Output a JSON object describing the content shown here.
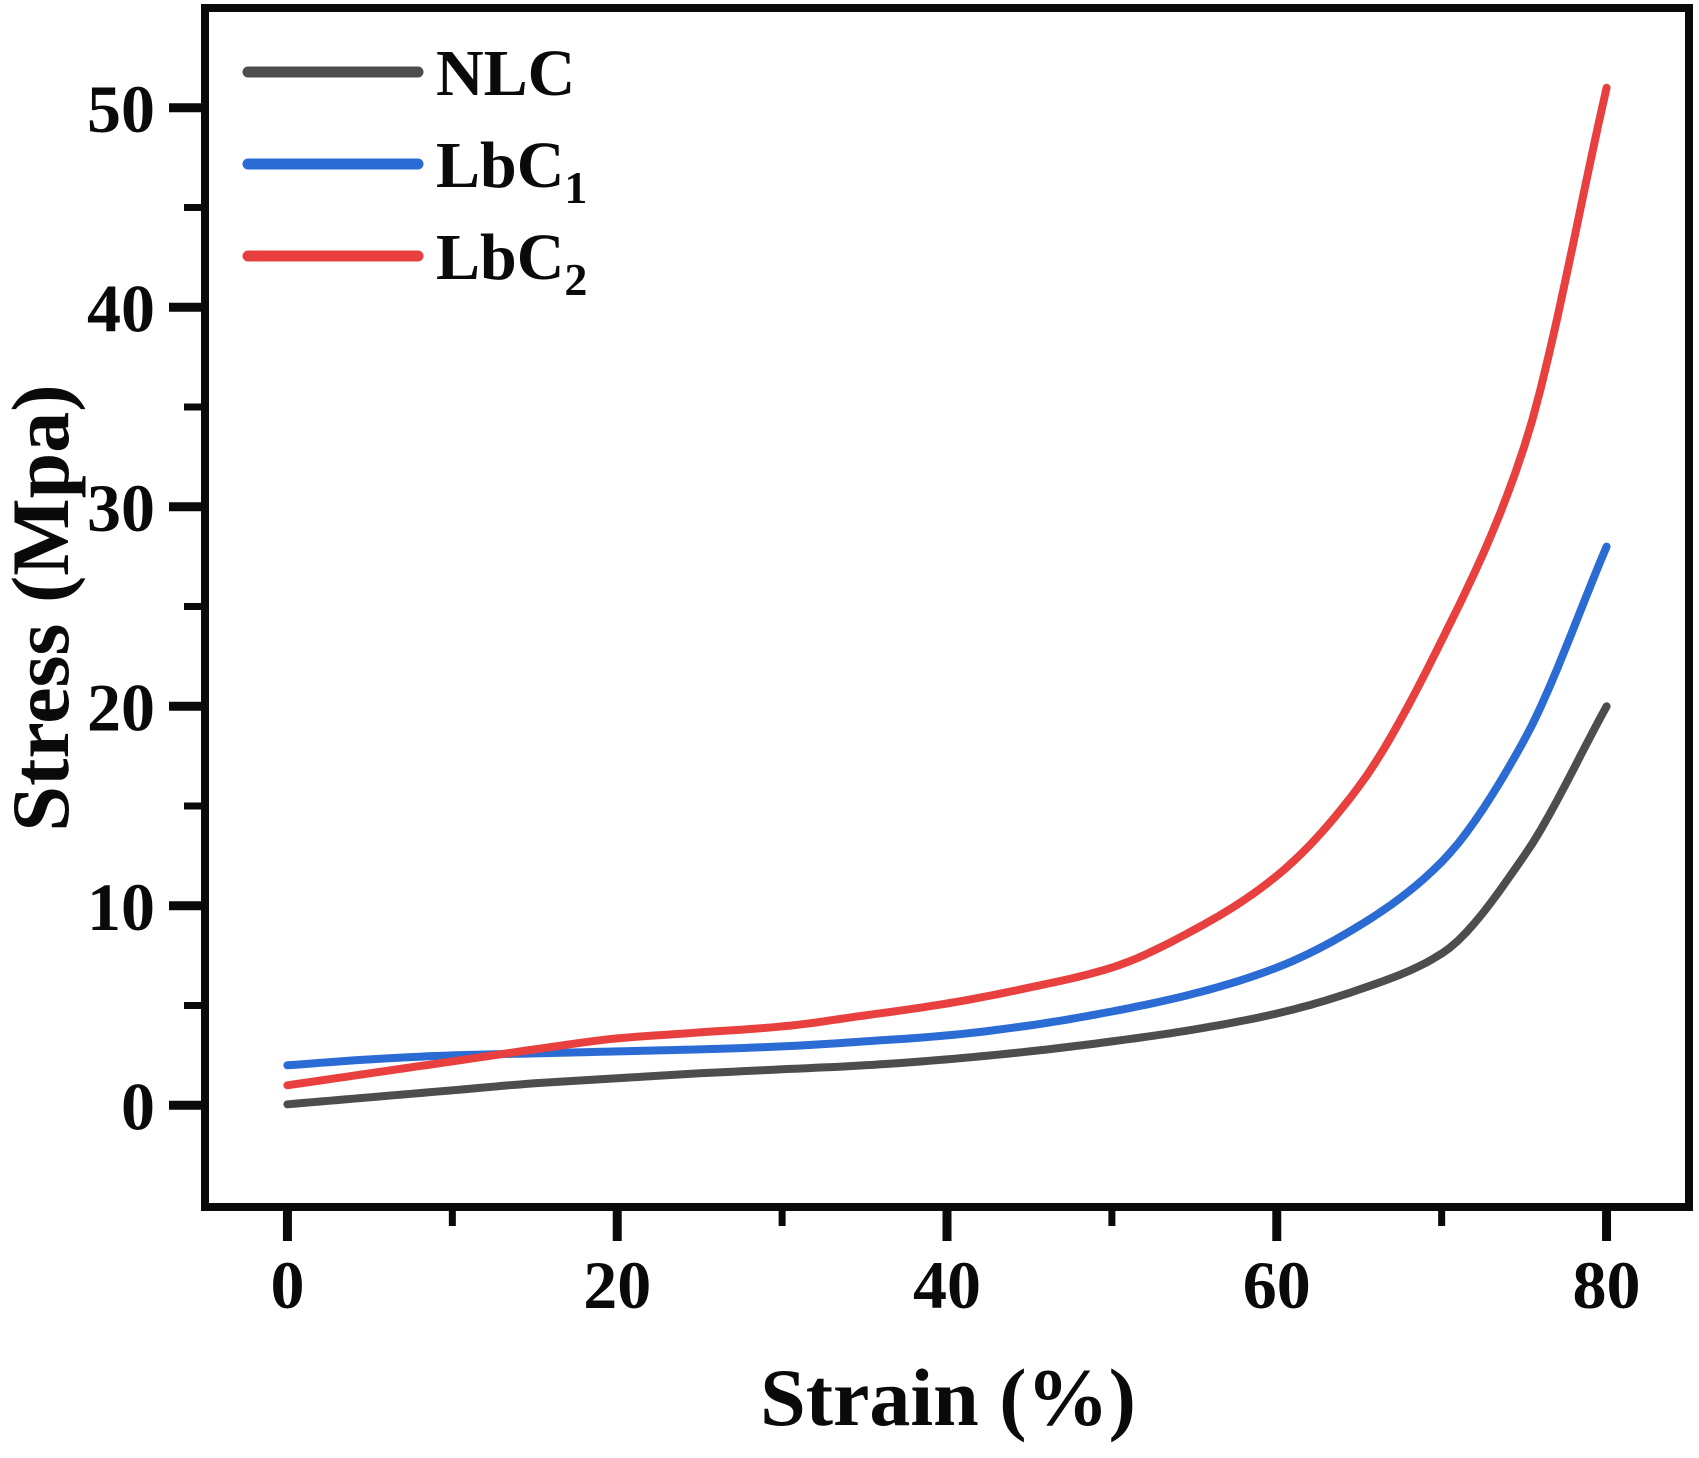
{
  "chart_data": {
    "type": "line",
    "title": "",
    "xlabel": "Strain (%)",
    "ylabel": "Stress (Mpa)",
    "xlim": [
      -5,
      85
    ],
    "ylim": [
      -5,
      55
    ],
    "x_ticks": [
      0,
      20,
      40,
      60,
      80
    ],
    "x_minor_ticks": [
      10,
      30,
      50,
      70
    ],
    "y_ticks": [
      0,
      10,
      20,
      30,
      40,
      50
    ],
    "y_minor_ticks": [
      5,
      15,
      25,
      35,
      45
    ],
    "grid": false,
    "legend_position": "top-left",
    "axis_color": "#0a0a0a",
    "series": [
      {
        "name": "NLC",
        "display": {
          "main": "NLC",
          "sub": ""
        },
        "color": "#4d4d4d",
        "points": [
          [
            0,
            0.05
          ],
          [
            5,
            0.4
          ],
          [
            10,
            0.75
          ],
          [
            15,
            1.1
          ],
          [
            20,
            1.35
          ],
          [
            25,
            1.6
          ],
          [
            30,
            1.8
          ],
          [
            35,
            2.0
          ],
          [
            40,
            2.3
          ],
          [
            45,
            2.7
          ],
          [
            50,
            3.2
          ],
          [
            55,
            3.8
          ],
          [
            60,
            4.6
          ],
          [
            65,
            5.8
          ],
          [
            70,
            7.6
          ],
          [
            75,
            12.5
          ],
          [
            80,
            20.0
          ]
        ]
      },
      {
        "name": "LbC1",
        "display": {
          "main": "LbC",
          "sub": "1"
        },
        "color": "#2a6bd4",
        "points": [
          [
            0,
            2.0
          ],
          [
            5,
            2.3
          ],
          [
            10,
            2.5
          ],
          [
            15,
            2.6
          ],
          [
            20,
            2.7
          ],
          [
            25,
            2.8
          ],
          [
            30,
            2.95
          ],
          [
            35,
            3.2
          ],
          [
            40,
            3.5
          ],
          [
            45,
            4.0
          ],
          [
            50,
            4.7
          ],
          [
            55,
            5.6
          ],
          [
            60,
            6.9
          ],
          [
            65,
            9.0
          ],
          [
            70,
            12.2
          ],
          [
            75,
            18.3
          ],
          [
            80,
            28.0
          ]
        ]
      },
      {
        "name": "LbC2",
        "display": {
          "main": "LbC",
          "sub": "2"
        },
        "color": "#e8403f",
        "points": [
          [
            0,
            1.0
          ],
          [
            5,
            1.6
          ],
          [
            10,
            2.2
          ],
          [
            15,
            2.8
          ],
          [
            20,
            3.35
          ],
          [
            25,
            3.65
          ],
          [
            30,
            3.95
          ],
          [
            35,
            4.5
          ],
          [
            40,
            5.1
          ],
          [
            45,
            5.9
          ],
          [
            50,
            6.9
          ],
          [
            55,
            8.8
          ],
          [
            60,
            11.5
          ],
          [
            65,
            16.0
          ],
          [
            70,
            23.3
          ],
          [
            75,
            33.0
          ],
          [
            80,
            51.0
          ]
        ]
      }
    ]
  }
}
